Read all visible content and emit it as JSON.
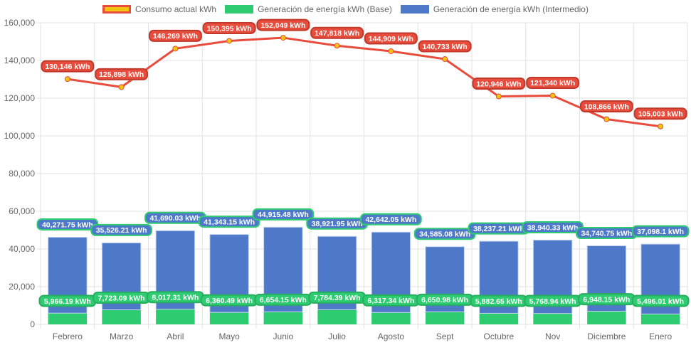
{
  "chart_data": {
    "type": "bar",
    "categories": [
      "Febrero",
      "Marzo",
      "Abril",
      "Mayo",
      "Junio",
      "Julio",
      "Agosto",
      "Sept",
      "Octubre",
      "Nov",
      "Diciembre",
      "Enero"
    ],
    "stacked": true,
    "ylim": [
      0,
      160000
    ],
    "yticks": [
      "0",
      "20,000",
      "40,000",
      "60,000",
      "80,000",
      "100,000",
      "120,000",
      "140,000",
      "160,000"
    ],
    "grid": true,
    "legend_position": "top",
    "series": [
      {
        "name": "Consumo actual kWh",
        "type": "line",
        "color": "#e74c3c",
        "point_color": "#f1c40f",
        "values": [
          130146,
          125898,
          146269,
          150395,
          152049,
          147818,
          144909,
          140733,
          120946,
          121340,
          108866,
          105003
        ],
        "labels": [
          "130,146 kWh",
          "125,898 kWh",
          "146,269 kWh",
          "150,395 kWh",
          "152,049 kWh",
          "147,818 kWh",
          "144,909 kWh",
          "140,733 kWh",
          "120,946 kWh",
          "121,340 kWh",
          "108,866 kWh",
          "105,003 kWh"
        ]
      },
      {
        "name": "Generación de energía kWh (Base)",
        "type": "bar",
        "color": "#2ecc71",
        "values": [
          5966.19,
          7723.09,
          8017.31,
          6360.49,
          6654.15,
          7784.39,
          6317.34,
          6650.98,
          5882.65,
          5768.94,
          6948.15,
          5496.01
        ],
        "labels": [
          "5,966.19 kWh",
          "7,723.09 kWh",
          "8,017.31 kWh",
          "6,360.49 kWh",
          "6,654.15 kWh",
          "7,784.39 kWh",
          "6,317.34 kWh",
          "6,650.98 kWh",
          "5,882.65 kWh",
          "5,768.94 kWh",
          "6,948.15 kWh",
          "5,496.01 kWh"
        ]
      },
      {
        "name": "Generación de energía kWh (Intermedio)",
        "type": "bar",
        "color": "#4e79c9",
        "values": [
          40271.75,
          35526.21,
          41690.03,
          41343.15,
          44915.48,
          38921.95,
          42642.05,
          34585.08,
          38237.21,
          38940.33,
          34740.75,
          37098.1
        ],
        "labels": [
          "40,271.75 kWh",
          "35,526.21 kWh",
          "41,690.03 kWh",
          "41,343.15 kWh",
          "44,915.48 kWh",
          "38,921.95 kWh",
          "42,642.05 kWh",
          "34,585.08 kWh",
          "38,237.21 kWh",
          "38,940.33 kWh",
          "34,740.75 kWh",
          "37,098.1 kWh"
        ]
      }
    ]
  }
}
